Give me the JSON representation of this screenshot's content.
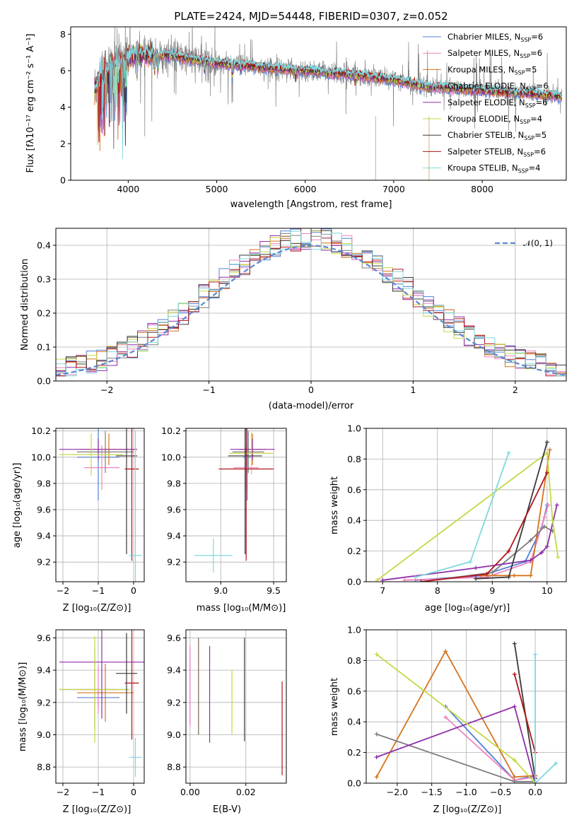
{
  "title": "PLATE=2424, MJD=54448, FIBERID=0307, z=0.052",
  "colors": [
    "#4f7fd6",
    "#ef84c1",
    "#d4741f",
    "#7d7d7d",
    "#8f2ea8",
    "#c5d843",
    "#3a3a3a",
    "#b0151b",
    "#7fd8de"
  ],
  "spectrum_panel": {
    "xlabel": "wavelength [Angstrom, rest frame]",
    "ylabel": "Flux [fλ10⁻¹⁷ erg cm⁻² s⁻¹ A⁻¹]",
    "x_ticks": [
      "4000",
      "5000",
      "6000",
      "7000",
      "8000"
    ],
    "y_ticks": [
      "0",
      "2",
      "4",
      "6",
      "8"
    ],
    "legend": [
      "Chabrier MILES, N_SSP=6",
      "Salpeter MILES, N_SSP=6",
      "Kroupa MILES, N_SSP=5",
      "Chabrier ELODIE, N_SSP=6",
      "Salpeter ELODIE, N_SSP=6",
      "Kroupa ELODIE, N_SSP=4",
      "Chabrier STELIB, N_SSP=5",
      "Salpeter STELIB, N_SSP=6",
      "Kroupa STELIB, N_SSP=4"
    ]
  },
  "residual_panel": {
    "xlabel": "(data-model)/error",
    "ylabel": "Normed distribution",
    "x_ticks": [
      "−2",
      "−1",
      "0",
      "1",
      "2"
    ],
    "y_ticks": [
      "0.0",
      "0.1",
      "0.2",
      "0.3",
      "0.4"
    ],
    "legend": "𝒩(0, 1)"
  },
  "small_panels": {
    "z_label": "Z [log₁₀(Z/Z⊙)]",
    "mass_label": "mass [log₁₀(M/M⊙)]",
    "age_label": "age  [log₁₀(age/yr)]",
    "ebv_label": "E(B-V)",
    "mass_weight_label": "mass weight",
    "age_ticks": [
      "9.2",
      "9.4",
      "9.6",
      "9.8",
      "10.0",
      "10.2"
    ],
    "mass_ticks": [
      "8.8",
      "9.0",
      "9.2",
      "9.4",
      "9.6"
    ],
    "z_ticks": [
      "−2",
      "−1",
      "0"
    ],
    "mass_x_ticks": [
      "9.0",
      "9.5"
    ],
    "ebv_ticks": [
      "0.00",
      "0.02"
    ],
    "mw_ticks": [
      "0.0",
      "0.2",
      "0.4",
      "0.6",
      "0.8",
      "1.0"
    ],
    "age_x_ticks": [
      "7",
      "8",
      "9",
      "10"
    ],
    "z_fine_ticks": [
      "−2.0",
      "−1.5",
      "−1.0",
      "−0.5",
      "0.0"
    ]
  },
  "chart_data": [
    {
      "type": "line",
      "panel": "spectrum",
      "title": "PLATE=2424, MJD=54448, FIBERID=0307, z=0.052",
      "xlabel": "wavelength [Angstrom, rest frame]",
      "ylabel": "Flux [fλ10⁻¹⁷ erg cm⁻² s⁻¹ A⁻¹]",
      "xlim": [
        3350,
        8950
      ],
      "ylim": [
        0,
        8.4
      ],
      "continuum": {
        "x": [
          3620,
          3700,
          3850,
          4000,
          4200,
          4500,
          5000,
          5500,
          6000,
          6500,
          7000,
          7400,
          7500,
          8000,
          8500,
          8900
        ],
        "y": [
          4.9,
          5.8,
          6.4,
          6.7,
          6.9,
          6.8,
          6.4,
          6.2,
          6.0,
          5.8,
          5.5,
          5.1,
          5.1,
          4.9,
          4.75,
          4.6
        ]
      },
      "series": [
        {
          "name": "Chabrier MILES, N_SSP=6"
        },
        {
          "name": "Salpeter MILES, N_SSP=6"
        },
        {
          "name": "Kroupa MILES, N_SSP=5"
        },
        {
          "name": "Chabrier ELODIE, N_SSP=6"
        },
        {
          "name": "Salpeter ELODIE, N_SSP=6"
        },
        {
          "name": "Kroupa ELODIE, N_SSP=4"
        },
        {
          "name": "Chabrier STELIB, N_SSP=5"
        },
        {
          "name": "Salpeter STELIB, N_SSP=6"
        },
        {
          "name": "Kroupa STELIB, N_SSP=4"
        }
      ]
    },
    {
      "type": "area",
      "panel": "residual_histogram",
      "xlabel": "(data-model)/error",
      "ylabel": "Normed distribution",
      "xlim": [
        -2.5,
        2.5
      ],
      "ylim": [
        0,
        0.45
      ],
      "bin_width": 0.1,
      "reference_curve": {
        "name": "𝒩(0, 1)",
        "mean": 0,
        "sigma": 1
      }
    },
    {
      "type": "scatter",
      "panel": "age_vs_Z",
      "xlim": [
        -2.2,
        0.3
      ],
      "ylim": [
        9.05,
        10.22
      ],
      "points": [
        {
          "x": -1.0,
          "xerr": 0.6,
          "y": 10.0,
          "yerr": 0.33
        },
        {
          "x": -0.9,
          "xerr": 0.5,
          "y": 9.92,
          "yerr": 0.17
        },
        {
          "x": -0.7,
          "xerr": 0.8,
          "y": 10.06,
          "yerr": 0.12
        },
        {
          "x": -0.8,
          "xerr": 0.8,
          "y": 10.04,
          "yerr": 0.16
        },
        {
          "x": -1.0,
          "xerr": 1.1,
          "y": 10.06,
          "yerr": 0.08
        },
        {
          "x": -1.2,
          "xerr": 0.9,
          "y": 10.02,
          "yerr": 0.16
        },
        {
          "x": -0.2,
          "xerr": 0.3,
          "y": 10.01,
          "yerr": 0.75
        },
        {
          "x": -0.05,
          "xerr": 0.2,
          "y": 9.91,
          "yerr": 0.7
        },
        {
          "x": 0.05,
          "xerr": 0.18,
          "y": 9.25,
          "yerr": 0.95
        }
      ]
    },
    {
      "type": "scatter",
      "panel": "age_vs_mass",
      "xlim": [
        8.67,
        9.62
      ],
      "ylim": [
        9.05,
        10.22
      ],
      "points": [
        {
          "x": 9.25,
          "xerr": 0.04,
          "y": 10.0,
          "yerr": 0.33
        },
        {
          "x": 9.24,
          "xerr": 0.12,
          "y": 9.92,
          "yerr": 0.17
        },
        {
          "x": 9.3,
          "xerr": 0.13,
          "y": 10.06,
          "yerr": 0.12
        },
        {
          "x": 9.26,
          "xerr": 0.15,
          "y": 10.04,
          "yerr": 0.16
        },
        {
          "x": 9.3,
          "xerr": 0.21,
          "y": 10.06,
          "yerr": 0.08
        },
        {
          "x": 9.29,
          "xerr": 0.21,
          "y": 10.03,
          "yerr": 0.16
        },
        {
          "x": 9.23,
          "xerr": 0.16,
          "y": 10.01,
          "yerr": 0.75
        },
        {
          "x": 9.24,
          "xerr": 0.26,
          "y": 9.91,
          "yerr": 0.7
        },
        {
          "x": 8.93,
          "xerr": 0.18,
          "y": 9.25,
          "yerr": 0.13
        }
      ]
    },
    {
      "type": "line",
      "panel": "mass_weight_vs_age",
      "xlim": [
        6.7,
        10.35
      ],
      "ylim": [
        0,
        1.0
      ],
      "series": [
        {
          "x": [
            7.6,
            8.8,
            9.6,
            9.9,
            10.0
          ],
          "y": [
            0.01,
            0.04,
            0.13,
            0.35,
            0.5
          ]
        },
        {
          "x": [
            7.4,
            8.9,
            9.7,
            9.95,
            10.02
          ],
          "y": [
            0.01,
            0.03,
            0.13,
            0.42,
            0.5
          ]
        },
        {
          "x": [
            8.8,
            9.4,
            9.7,
            10.05
          ],
          "y": [
            0.04,
            0.04,
            0.04,
            0.86
          ]
        },
        {
          "x": [
            7.7,
            9.0,
            9.7,
            9.95,
            10.1
          ],
          "y": [
            0.0,
            0.06,
            0.27,
            0.36,
            0.33
          ]
        },
        {
          "x": [
            7.0,
            8.7,
            9.7,
            9.9,
            10.0,
            10.18
          ],
          "y": [
            0.01,
            0.09,
            0.14,
            0.19,
            0.23,
            0.5
          ]
        },
        {
          "x": [
            6.9,
            10.0,
            10.1,
            10.2
          ],
          "y": [
            0.01,
            0.84,
            0.4,
            0.16
          ]
        },
        {
          "x": [
            8.7,
            9.3,
            10.0
          ],
          "y": [
            0.02,
            0.03,
            0.91
          ]
        },
        {
          "x": [
            7.7,
            8.9,
            9.3,
            10.0
          ],
          "y": [
            0.0,
            0.05,
            0.2,
            0.71
          ]
        },
        {
          "x": [
            7.6,
            8.6,
            9.3
          ],
          "y": [
            0.03,
            0.13,
            0.84
          ]
        }
      ]
    },
    {
      "type": "scatter",
      "panel": "mass_vs_Z",
      "xlim": [
        -2.2,
        0.3
      ],
      "ylim": [
        8.7,
        9.65
      ],
      "points": [
        {
          "x": -1.0,
          "xerr": 0.6,
          "y": 9.23,
          "yerr": 0.06
        },
        {
          "x": -1.0,
          "xerr": 0.5,
          "y": 9.28,
          "yerr": 0.15
        },
        {
          "x": -0.8,
          "xerr": 0.8,
          "y": 9.26,
          "yerr": 0.18
        },
        {
          "x": -1.1,
          "xerr": 1.0,
          "y": 9.28,
          "yerr": 0.25
        },
        {
          "x": -0.9,
          "xerr": 1.2,
          "y": 9.45,
          "yerr": 0.35
        },
        {
          "x": -1.1,
          "xerr": 1.0,
          "y": 9.28,
          "yerr": 0.33
        },
        {
          "x": -0.2,
          "xerr": 0.3,
          "y": 9.38,
          "yerr": 0.25
        },
        {
          "x": -0.05,
          "xerr": 0.2,
          "y": 9.32,
          "yerr": 0.35
        },
        {
          "x": 0.05,
          "xerr": 0.18,
          "y": 8.86,
          "yerr": 0.12
        }
      ]
    },
    {
      "type": "scatter",
      "panel": "mass_vs_EBV",
      "xlim": [
        -0.0015,
        0.0345
      ],
      "ylim": [
        8.7,
        9.65
      ],
      "points": [
        {
          "x": 0.0,
          "y": 9.3,
          "yerr": 0.23
        },
        {
          "x": 0.0,
          "y": 9.3,
          "yerr": 0.25
        },
        {
          "x": 0.003,
          "y": 9.3,
          "yerr": 0.3
        },
        {
          "x": 0.003,
          "y": 9.3,
          "yerr": 0.3
        },
        {
          "x": 0.007,
          "y": 9.25,
          "yerr": 0.3
        },
        {
          "x": 0.015,
          "y": 9.2,
          "yerr": 0.2
        },
        {
          "x": 0.0195,
          "y": 9.28,
          "yerr": 0.32
        },
        {
          "x": 0.033,
          "y": 9.04,
          "yerr": 0.29
        }
      ]
    },
    {
      "type": "line",
      "panel": "mass_weight_vs_Z",
      "xlim": [
        -2.45,
        0.45
      ],
      "ylim": [
        0,
        1.0
      ],
      "series": [
        {
          "x": [
            -1.3,
            -0.3,
            0.0
          ],
          "y": [
            0.5,
            0.02,
            0.05
          ]
        },
        {
          "x": [
            -1.3,
            -0.3,
            0.0
          ],
          "y": [
            0.43,
            0.02,
            0.04
          ]
        },
        {
          "x": [
            -2.3,
            -1.3,
            -0.3,
            0.0
          ],
          "y": [
            0.04,
            0.86,
            0.04,
            0.05
          ]
        },
        {
          "x": [
            -2.3,
            -0.3,
            0.0
          ],
          "y": [
            0.32,
            0.01,
            0.01
          ]
        },
        {
          "x": [
            -2.3,
            -0.3,
            0.0
          ],
          "y": [
            0.17,
            0.5,
            0.0
          ]
        },
        {
          "x": [
            -2.3,
            -0.3,
            0.0
          ],
          "y": [
            0.84,
            0.15,
            0.0
          ]
        },
        {
          "x": [
            -0.3,
            0.0
          ],
          "y": [
            0.91,
            0.03
          ]
        },
        {
          "x": [
            -0.3,
            0.0
          ],
          "y": [
            0.71,
            0.2
          ]
        },
        {
          "x": [
            0.0,
            0.0,
            0.3
          ],
          "y": [
            0.84,
            0.0,
            0.13
          ]
        }
      ]
    }
  ]
}
